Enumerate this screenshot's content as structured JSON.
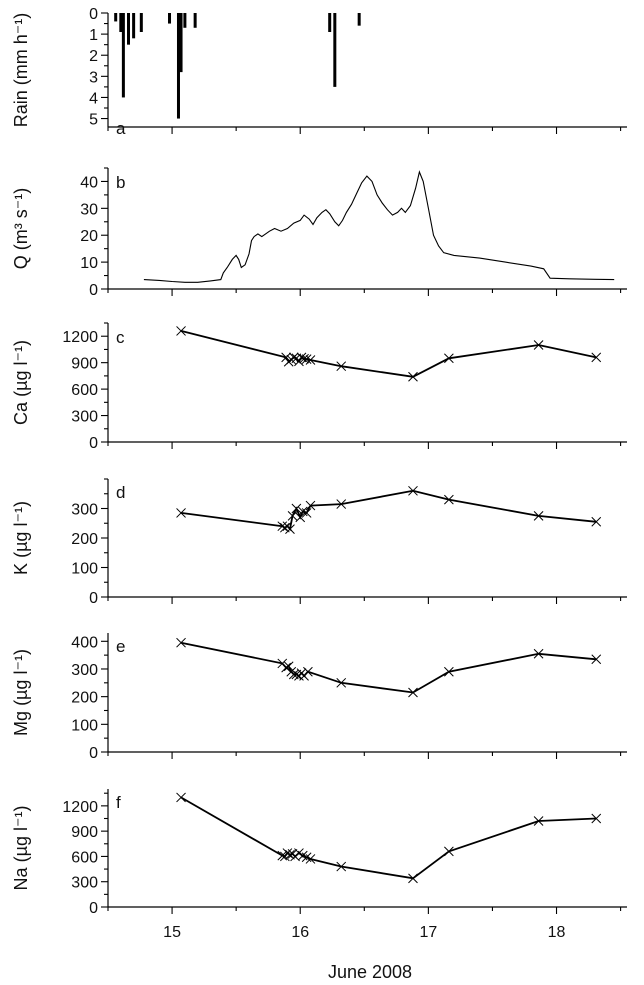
{
  "figure": {
    "xlabel": "June 2008"
  },
  "chart_data": [
    {
      "type": "bar",
      "panel": "a",
      "ylabel": "Rain (mm h⁻¹)",
      "ylim": [
        5.4,
        0
      ],
      "yticks": [
        0,
        1,
        2,
        3,
        4,
        5
      ],
      "inverted": true,
      "x_unit": "day of June 2008",
      "x": [
        14.56,
        14.6,
        14.62,
        14.66,
        14.7,
        14.76,
        14.98,
        15.05,
        15.07,
        15.1,
        15.18,
        16.23,
        16.27,
        16.46
      ],
      "values": [
        0.4,
        0.9,
        4.0,
        1.5,
        1.2,
        0.9,
        0.5,
        5.0,
        2.8,
        0.7,
        0.7,
        0.9,
        3.5,
        0.6
      ]
    },
    {
      "type": "line",
      "panel": "b",
      "ylabel": "Q (m³ s⁻¹)",
      "ylim": [
        0,
        45
      ],
      "yticks": [
        0,
        10,
        20,
        30,
        40
      ],
      "x": [
        14.78,
        14.9,
        15.0,
        15.1,
        15.2,
        15.3,
        15.38,
        15.4,
        15.43,
        15.47,
        15.5,
        15.52,
        15.54,
        15.57,
        15.6,
        15.62,
        15.64,
        15.67,
        15.7,
        15.73,
        15.76,
        15.8,
        15.85,
        15.9,
        15.95,
        16.0,
        16.03,
        16.07,
        16.1,
        16.13,
        16.17,
        16.2,
        16.23,
        16.27,
        16.3,
        16.33,
        16.36,
        16.4,
        16.44,
        16.48,
        16.52,
        16.56,
        16.6,
        16.64,
        16.68,
        16.72,
        16.76,
        16.79,
        16.82,
        16.86,
        16.9,
        16.93,
        16.96,
        17.0,
        17.04,
        17.08,
        17.12,
        17.2,
        17.4,
        17.6,
        17.8,
        17.9,
        17.95,
        18.1,
        18.3,
        18.45
      ],
      "values": [
        3.5,
        3.2,
        2.8,
        2.5,
        2.5,
        3.0,
        3.5,
        6,
        8,
        11,
        12.5,
        11,
        8,
        9,
        13,
        18,
        19.5,
        20.5,
        19.5,
        20.5,
        21.5,
        22.5,
        21.5,
        22.5,
        24.5,
        25.5,
        27.5,
        26,
        24,
        26.5,
        28.5,
        29.5,
        28,
        25,
        23.5,
        25.5,
        28.5,
        31.5,
        35.5,
        39.5,
        42,
        40,
        35,
        32,
        29.5,
        27.5,
        28.5,
        30,
        28.5,
        31,
        37.5,
        43.5,
        40,
        30,
        20,
        16,
        13.5,
        12.5,
        11.5,
        10,
        8.5,
        7.5,
        4,
        3.8,
        3.6,
        3.5
      ]
    },
    {
      "type": "line",
      "panel": "c",
      "ylabel": "Ca (µg l⁻¹)",
      "ylim": [
        0,
        1350
      ],
      "yticks": [
        0,
        300,
        600,
        900,
        1200
      ],
      "markers": "x",
      "x": [
        15.07,
        15.89,
        15.91,
        15.93,
        15.95,
        15.97,
        15.99,
        16.01,
        16.03,
        16.05,
        16.08,
        16.32,
        16.88,
        17.16,
        17.86,
        18.31
      ],
      "values": [
        1260,
        960,
        910,
        935,
        960,
        950,
        915,
        960,
        945,
        940,
        930,
        860,
        740,
        950,
        1100,
        960
      ]
    },
    {
      "type": "line",
      "panel": "d",
      "ylabel": "K (µg l⁻¹)",
      "ylim": [
        0,
        400
      ],
      "yticks": [
        0,
        100,
        200,
        300
      ],
      "markers": "x",
      "x": [
        15.07,
        15.86,
        15.88,
        15.9,
        15.92,
        15.94,
        15.97,
        16.0,
        16.02,
        16.05,
        16.08,
        16.32,
        16.88,
        17.16,
        17.86,
        18.31
      ],
      "values": [
        285,
        240,
        235,
        240,
        230,
        275,
        300,
        270,
        290,
        285,
        310,
        315,
        360,
        330,
        275,
        255
      ]
    },
    {
      "type": "line",
      "panel": "e",
      "ylabel": "Mg (µg l⁻¹)",
      "ylim": [
        0,
        430
      ],
      "yticks": [
        0,
        100,
        200,
        300,
        400
      ],
      "markers": "x",
      "x": [
        15.07,
        15.86,
        15.89,
        15.91,
        15.93,
        15.95,
        15.97,
        15.99,
        16.01,
        16.03,
        16.06,
        16.32,
        16.88,
        17.16,
        17.86,
        18.31
      ],
      "values": [
        395,
        320,
        305,
        310,
        290,
        280,
        280,
        275,
        285,
        275,
        290,
        250,
        215,
        290,
        355,
        335
      ]
    },
    {
      "type": "line",
      "panel": "f",
      "ylabel": "Na (µg l⁻¹)",
      "ylim": [
        0,
        1400
      ],
      "yticks": [
        0,
        300,
        600,
        900,
        1200
      ],
      "markers": "x",
      "x": [
        15.07,
        15.86,
        15.88,
        15.9,
        15.92,
        15.94,
        15.96,
        15.99,
        16.02,
        16.05,
        16.08,
        16.32,
        16.88,
        17.16,
        17.86,
        18.31
      ],
      "values": [
        1300,
        610,
        600,
        640,
        620,
        630,
        600,
        640,
        610,
        590,
        570,
        480,
        340,
        660,
        1020,
        1050
      ]
    }
  ],
  "xaxis": {
    "xlim": [
      14.5,
      18.55
    ],
    "ticks": [
      15,
      16,
      17,
      18
    ],
    "labels": [
      "15",
      "16",
      "17",
      "18"
    ]
  }
}
